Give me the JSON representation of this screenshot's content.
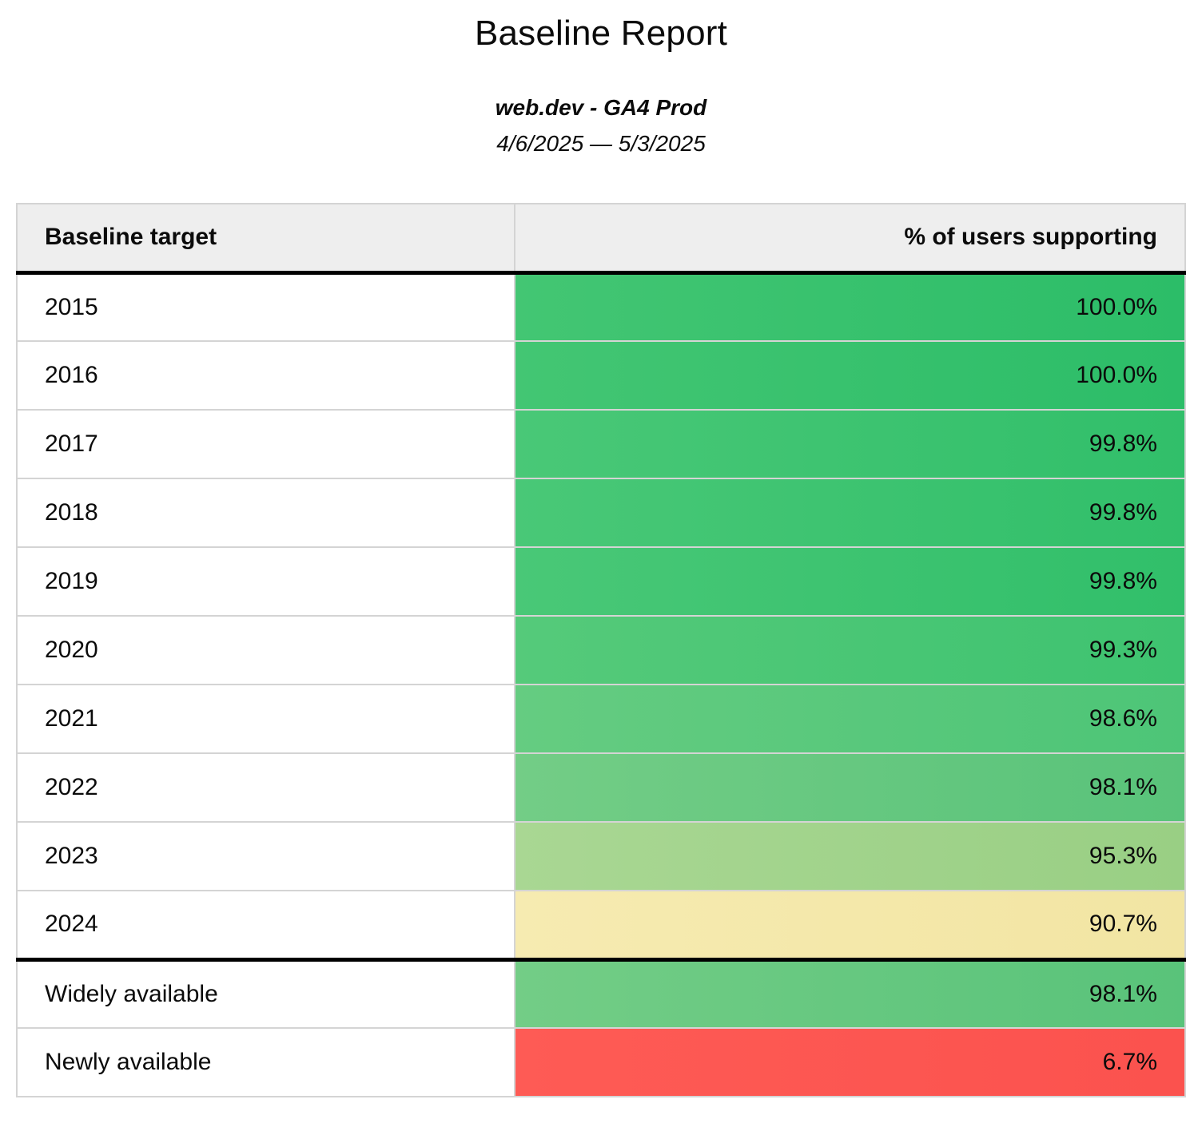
{
  "title": "Baseline Report",
  "subtitle": "web.dev - GA4 Prod",
  "date_range": "4/6/2025 — 5/3/2025",
  "palette": {
    "header_bg": "#eeeeee",
    "row_separator": "#d4d4d4",
    "group_separator": "#000000",
    "text": "#0b0b0b",
    "green_full": "#2cbd68",
    "green_light": "#99cf84",
    "yellow": "#f3e6a6",
    "red": "#fd5751"
  },
  "table": {
    "columns": [
      "Baseline target",
      "% of users supporting"
    ],
    "rows": [
      {
        "label": "2015",
        "value": "100.0%",
        "color_left": "#43c673",
        "color_right": "#2cbd68",
        "separator_above": false
      },
      {
        "label": "2016",
        "value": "100.0%",
        "color_left": "#43c673",
        "color_right": "#2cbd68",
        "separator_above": false
      },
      {
        "label": "2017",
        "value": "99.8%",
        "color_left": "#49c877",
        "color_right": "#31bf6a",
        "separator_above": false
      },
      {
        "label": "2018",
        "value": "99.8%",
        "color_left": "#49c877",
        "color_right": "#31bf6a",
        "separator_above": false
      },
      {
        "label": "2019",
        "value": "99.8%",
        "color_left": "#49c877",
        "color_right": "#31bf6a",
        "separator_above": false
      },
      {
        "label": "2020",
        "value": "99.3%",
        "color_left": "#55ca7a",
        "color_right": "#3ec370",
        "separator_above": false
      },
      {
        "label": "2021",
        "value": "98.6%",
        "color_left": "#65cc81",
        "color_right": "#4dc577",
        "separator_above": false
      },
      {
        "label": "2022",
        "value": "98.1%",
        "color_left": "#73cd86",
        "color_right": "#59c37a",
        "separator_above": false
      },
      {
        "label": "2023",
        "value": "95.3%",
        "color_left": "#a9d793",
        "color_right": "#99cf84",
        "separator_above": false
      },
      {
        "label": "2024",
        "value": "90.7%",
        "color_left": "#f6ebb1",
        "color_right": "#f2e5a3",
        "separator_above": false
      },
      {
        "label": "Widely available",
        "value": "98.1%",
        "color_left": "#73cd86",
        "color_right": "#59c37a",
        "separator_above": true
      },
      {
        "label": "Newly available",
        "value": "6.7%",
        "color_left": "#fe5b55",
        "color_right": "#fb524e",
        "separator_above": false
      }
    ]
  },
  "chart_data": {
    "type": "table",
    "title": "Baseline Report",
    "subtitle": "web.dev - GA4 Prod",
    "date_range": "4/6/2025 — 5/3/2025",
    "columns": [
      "Baseline target",
      "% of users supporting"
    ],
    "categories": [
      "2015",
      "2016",
      "2017",
      "2018",
      "2019",
      "2020",
      "2021",
      "2022",
      "2023",
      "2024",
      "Widely available",
      "Newly available"
    ],
    "values": [
      100.0,
      100.0,
      99.8,
      99.8,
      99.8,
      99.3,
      98.6,
      98.1,
      95.3,
      90.7,
      98.1,
      6.7
    ],
    "value_unit": "percent of users supporting",
    "layout": "two-column table, value column heat-colored red→yellow→green by percentage, thick black rule separating year rows from availability summary rows"
  }
}
